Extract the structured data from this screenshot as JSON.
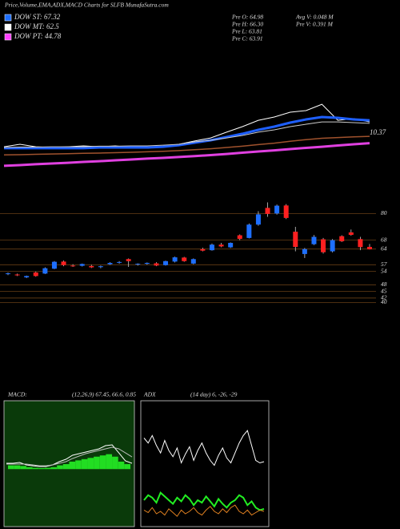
{
  "header": {
    "title": "Price,Volume,EMA,ADX,MACD Charts for SLFB MunafaSutra.com",
    "dow": [
      {
        "label": "DOW ST: 67.32",
        "color": "#1e6fff"
      },
      {
        "label": "DOW MT: 62.5",
        "color": "#ffffff"
      },
      {
        "label": "DOW PT: 44.78",
        "color": "#ff40ff"
      }
    ],
    "info": [
      "Pre O: 64.98",
      "Pre H: 66.30",
      "Pre L: 63.81",
      "Pre C: 63.91",
      "Avg V: 0.048 M",
      "Pre V: 0.391 M"
    ]
  },
  "chart_data": [
    {
      "type": "line",
      "ylim": [
        0,
        100
      ],
      "annotation": "10.37",
      "series": [
        {
          "color": "#ffffff",
          "width": 1,
          "values": [
            20.6,
            22.6,
            20.6,
            20,
            20.6,
            21.3,
            20.6,
            21.3,
            20,
            19.4,
            20.6,
            22.6,
            25.2,
            27.7,
            32.3,
            36.8,
            41.9,
            44.5,
            48.4,
            49.7,
            54.8,
            41.9,
            43.2,
            40.6
          ]
        },
        {
          "color": "#1e5fff",
          "width": 3,
          "values": [
            19.4,
            19.4,
            19.4,
            19.4,
            19.4,
            19.4,
            20,
            20,
            20,
            20,
            20.6,
            21.9,
            23.9,
            25.8,
            28.4,
            31,
            34.2,
            36.8,
            40,
            42.6,
            44.5,
            43.9,
            42.6,
            41.9
          ]
        },
        {
          "color": "#cccccc",
          "width": 1,
          "values": [
            20,
            20.3,
            20.3,
            20.6,
            20.6,
            20.6,
            21,
            21,
            21.3,
            21.3,
            21.9,
            22.6,
            24.5,
            25.8,
            27.7,
            29.7,
            32.3,
            34.2,
            36.8,
            38.7,
            40.6,
            40.6,
            40,
            39.4
          ]
        },
        {
          "color": "#a0522d",
          "width": 1.5,
          "values": [
            14,
            14.2,
            14.5,
            14.8,
            15,
            15.3,
            15.5,
            15.8,
            16.1,
            16.5,
            17,
            17.5,
            18.2,
            19,
            20,
            21,
            22.3,
            23.5,
            25,
            26.3,
            27.4,
            28,
            28.5,
            29
          ]
        },
        {
          "color": "#e040e0",
          "width": 3,
          "values": [
            5.2,
            5.8,
            6.5,
            7.1,
            7.7,
            8.4,
            9,
            9.7,
            10.3,
            11,
            11.6,
            12.3,
            13,
            13.9,
            14.8,
            15.8,
            16.8,
            17.7,
            18.7,
            19.7,
            20.6,
            21.6,
            22.6,
            23.5
          ]
        }
      ]
    },
    {
      "type": "candlestick",
      "ylim": [
        38,
        92
      ],
      "yticks": [
        80,
        68,
        64,
        57,
        54,
        48,
        45,
        42,
        40
      ],
      "grid": true,
      "up_color": "#1e6fff",
      "down_color": "#ff2020",
      "open": [
        52.8,
        52.6,
        51.3,
        53.5,
        53.0,
        55.2,
        58.4,
        56.6,
        56.5,
        56.4,
        55.9,
        57.2,
        57.9,
        59.5,
        57.1,
        57.4,
        57.6,
        56.8,
        58.4,
        60.2,
        57.5,
        64.0,
        63.5,
        66.0,
        64.8,
        70.2,
        69.0,
        75.0,
        82.5,
        80.0,
        83.6,
        71.8,
        61.8,
        66.2,
        68.4,
        63.0,
        69.8,
        71.5,
        68.5,
        64.98
      ],
      "high": [
        53.5,
        53.0,
        52.1,
        53.9,
        55.8,
        58.6,
        58.9,
        57.2,
        57.5,
        56.9,
        56.6,
        58.1,
        58.6,
        59.8,
        57.6,
        58.0,
        58.1,
        58.8,
        60.6,
        60.5,
        59.8,
        64.6,
        66.5,
        66.8,
        67.0,
        70.6,
        75.5,
        81.0,
        85.0,
        84.0,
        84.2,
        74.0,
        64.5,
        70.3,
        69.0,
        68.5,
        70.2,
        72.8,
        69.5,
        66.3
      ],
      "low": [
        52.3,
        51.9,
        51.0,
        51.6,
        52.8,
        55.0,
        56.3,
        56.0,
        56.2,
        55.5,
        55.4,
        56.9,
        57.5,
        56.0,
        56.6,
        57.0,
        56.3,
        56.6,
        58.0,
        58.3,
        57.2,
        63.0,
        63.3,
        64.8,
        64.5,
        68.0,
        68.8,
        74.5,
        78.5,
        79.5,
        77.5,
        63.0,
        60.0,
        65.8,
        62.0,
        62.5,
        67.2,
        70.0,
        63.5,
        63.81
      ],
      "close": [
        53.1,
        52.2,
        51.9,
        51.9,
        55.4,
        58.3,
        56.8,
        56.4,
        57.3,
        55.8,
        56.3,
        57.8,
        58.2,
        58.6,
        57.4,
        57.8,
        56.6,
        58.6,
        60.3,
        58.6,
        59.5,
        63.3,
        66.0,
        65.2,
        66.8,
        68.6,
        75.0,
        79.6,
        79.8,
        83.5,
        78.0,
        65.0,
        64.0,
        69.5,
        62.6,
        68.0,
        67.5,
        70.4,
        64.9,
        63.91
      ]
    },
    {
      "type": "macd",
      "label": "MACD:",
      "params": "(12,26,9) 67.45, 66.6, 0.85",
      "ylim": [
        -45,
        55
      ],
      "hist_color": "#22dd22",
      "series": [
        {
          "color": "#ffffff",
          "values": [
            4.7,
            4.7,
            5.3,
            3.4,
            2.7,
            2.1,
            2.1,
            3.4,
            6,
            7.9,
            11.1,
            12.4,
            13.7,
            15,
            16.3,
            18.9,
            19.5,
            13.1,
            6.6,
            4.7
          ]
        },
        {
          "color": "#bbbbbb",
          "values": [
            4,
            4,
            4,
            4,
            3.4,
            2.7,
            2.7,
            3.4,
            4.7,
            6,
            8.5,
            10.5,
            12.4,
            13.7,
            15,
            16.3,
            17.6,
            16.3,
            13.1,
            9.8
          ]
        }
      ],
      "histogram": [
        3,
        3,
        2.5,
        1.5,
        1,
        0.8,
        1,
        1.5,
        3,
        4,
        6,
        7,
        8,
        9,
        10,
        11,
        12,
        10,
        6,
        4
      ]
    },
    {
      "type": "adx",
      "label": "ADX",
      "params": "(14 day) 6, -26, -29",
      "ylim": [
        0,
        100
      ],
      "series": [
        {
          "color": "#ffffff",
          "values": [
            70,
            66,
            72,
            64,
            58,
            68,
            60,
            55,
            62,
            50,
            57,
            63,
            52,
            60,
            66,
            58,
            52,
            48,
            56,
            62,
            54,
            50,
            58,
            66,
            72,
            76,
            64,
            52,
            50,
            51
          ]
        },
        {
          "color": "#22ee22",
          "values": [
            20,
            24,
            22,
            18,
            26,
            23,
            20,
            17,
            22,
            19,
            24,
            21,
            16,
            20,
            18,
            23,
            19,
            15,
            21,
            17,
            14,
            18,
            20,
            24,
            22,
            16,
            19,
            14,
            12,
            13
          ]
        },
        {
          "color": "#e08020",
          "values": [
            12,
            10,
            14,
            9,
            11,
            8,
            13,
            10,
            7,
            12,
            9,
            11,
            14,
            10,
            8,
            12,
            15,
            11,
            9,
            13,
            10,
            14,
            16,
            11,
            9,
            12,
            8,
            10,
            12,
            11
          ]
        }
      ]
    }
  ]
}
